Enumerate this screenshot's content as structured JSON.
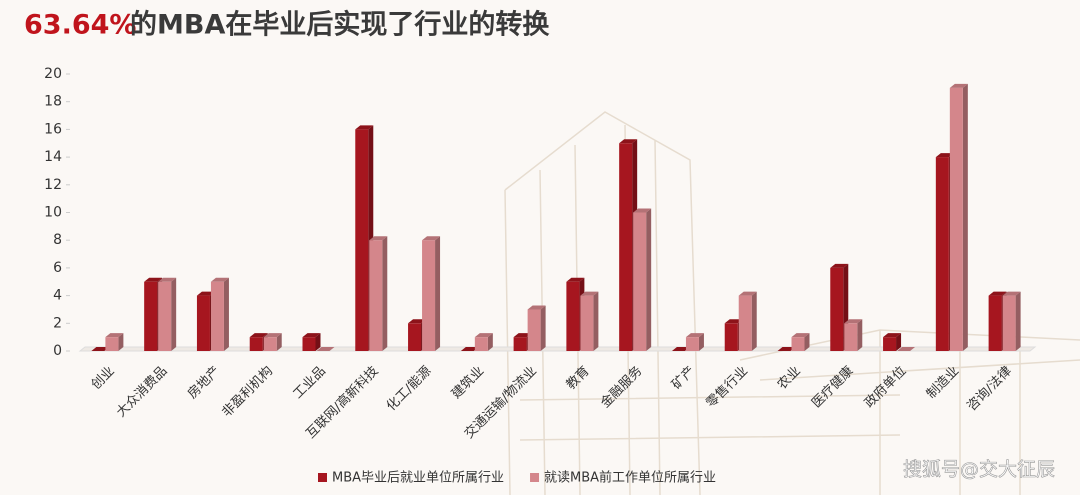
{
  "chart_data": {
    "type": "bar",
    "title_highlight": "63.64%",
    "title": "的MBA在毕业后实现了行业的转换",
    "categories": [
      "创业",
      "大众消费品",
      "房地产",
      "非盈利机构",
      "工业品",
      "互联网/高新科技",
      "化工/能源",
      "建筑业",
      "交通运输/物流业",
      "教育",
      "金融服务",
      "矿产",
      "零售行业",
      "农业",
      "医疗健康",
      "政府单位",
      "制造业",
      "咨询/法律"
    ],
    "series": [
      {
        "name": "MBA毕业后就业单位所属行业",
        "color": "#a6161f",
        "values": [
          0,
          5,
          4,
          1,
          1,
          16,
          2,
          0,
          1,
          5,
          15,
          0,
          2,
          0,
          6,
          1,
          14,
          4
        ]
      },
      {
        "name": "就读MBA前工作单位所属行业",
        "color": "#d4868b",
        "values": [
          1,
          5,
          5,
          1,
          0,
          8,
          8,
          1,
          3,
          4,
          10,
          1,
          4,
          1,
          2,
          0,
          19,
          4
        ]
      }
    ],
    "ylim": [
      0,
      20
    ],
    "yticks": [
      0,
      2,
      4,
      6,
      8,
      10,
      12,
      14,
      16,
      18,
      20
    ],
    "grid": false,
    "watermark": "搜狐号@交大征辰"
  }
}
